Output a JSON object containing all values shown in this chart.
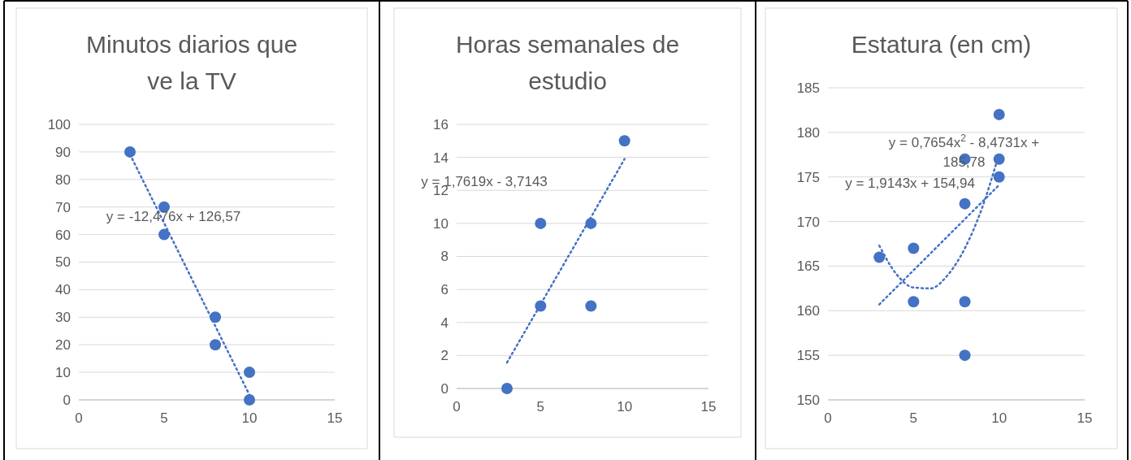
{
  "chart_data": [
    {
      "type": "scatter",
      "title": "Minutos diarios que ve la TV",
      "xlim": [
        0,
        15
      ],
      "xticks": [
        0,
        5,
        10,
        15
      ],
      "ylim": [
        0,
        100
      ],
      "yticks": [
        0,
        10,
        20,
        30,
        40,
        50,
        60,
        70,
        80,
        90,
        100
      ],
      "grid": "y",
      "series": [
        {
          "type": "scatter",
          "marker": "circle",
          "color": "#4472c4",
          "x": [
            3,
            5,
            5,
            8,
            8,
            10,
            10
          ],
          "values": [
            90,
            70,
            60,
            30,
            20,
            10,
            0
          ]
        },
        {
          "type": "line",
          "line_style": "dotted",
          "color": "#4472c4",
          "x": [
            3,
            10
          ],
          "values": [
            89.1,
            1.8
          ]
        }
      ],
      "annotations": [
        "y = -12,476x + 126,57"
      ]
    },
    {
      "type": "scatter",
      "title": "Horas semanales de estudio",
      "xlim": [
        0,
        15
      ],
      "xticks": [
        0,
        5,
        10,
        15
      ],
      "ylim": [
        0,
        16
      ],
      "yticks": [
        0,
        2,
        4,
        6,
        8,
        10,
        12,
        14,
        16
      ],
      "grid": "y",
      "series": [
        {
          "type": "scatter",
          "marker": "circle",
          "color": "#4472c4",
          "x": [
            3,
            5,
            5,
            8,
            8,
            10
          ],
          "values": [
            0,
            5,
            10,
            10,
            5,
            15
          ]
        },
        {
          "type": "line",
          "line_style": "dotted",
          "color": "#4472c4",
          "x": [
            3,
            10
          ],
          "values": [
            1.57,
            13.9
          ]
        }
      ],
      "annotations": [
        "y = 1,7619x - 3,7143"
      ]
    },
    {
      "type": "scatter",
      "title": "Estatura (en cm)",
      "xlim": [
        0,
        15
      ],
      "xticks": [
        0,
        5,
        10,
        15
      ],
      "ylim": [
        150,
        185
      ],
      "yticks": [
        150,
        155,
        160,
        165,
        170,
        175,
        180,
        185
      ],
      "grid": "y",
      "series": [
        {
          "type": "scatter",
          "marker": "circle",
          "color": "#4472c4",
          "x": [
            3,
            5,
            5,
            8,
            8,
            8,
            8,
            10,
            10,
            10
          ],
          "values": [
            166,
            167,
            161,
            177,
            172,
            161,
            155,
            182,
            177,
            175
          ]
        },
        {
          "type": "line",
          "line_style": "dotted",
          "color": "#4472c4",
          "x": [
            3,
            10
          ],
          "values": [
            160.7,
            174.1
          ]
        },
        {
          "type": "line",
          "line_style": "dotted",
          "color": "#4472c4",
          "x": [
            3,
            4,
            5,
            6,
            7,
            8,
            9,
            10
          ],
          "values": [
            167.3,
            164.1,
            162.6,
            162.5,
            164,
            167,
            171.5,
            177.6
          ]
        }
      ],
      "annotations": [
        "y = 0,7654x$^{2}$ - 8,4731x + 185,78",
        "y = 1,9143x + 154,94"
      ]
    }
  ]
}
